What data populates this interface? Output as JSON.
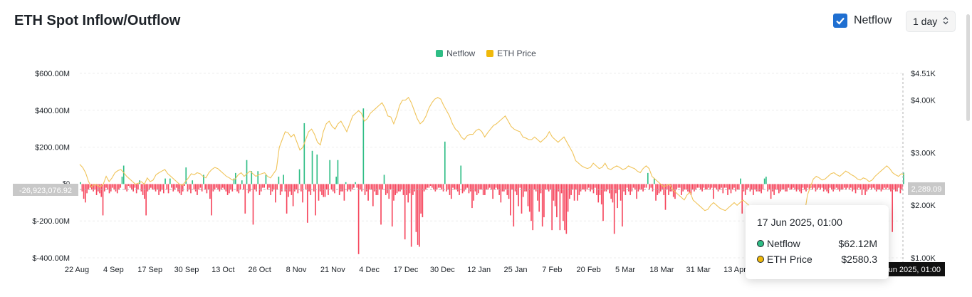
{
  "header": {
    "title": "ETH Spot Inflow/Outflow",
    "toggle_label": "Netflow",
    "range_value": "1 day"
  },
  "legend": [
    {
      "label": "Netflow",
      "color": "#2ebd85"
    },
    {
      "label": "ETH Price",
      "color": "#f0b90b"
    }
  ],
  "colors": {
    "inflow": "#2ebd85",
    "outflow": "#f6465d",
    "price": "#f0c45a",
    "checkbox": "#1f6fd1"
  },
  "icons": {
    "toggle": "check-icon",
    "select": "chevron-updown-icon"
  },
  "tooltip": {
    "date": "17 Jun 2025, 01:00",
    "rows": [
      {
        "label": "Netflow",
        "value": "$62.12M",
        "dot": "#2ebd85"
      },
      {
        "label": "ETH Price",
        "value": "$2580.3",
        "dot": "#f0b90b"
      }
    ]
  },
  "chart_data": {
    "type": "bar",
    "title": "ETH Spot Inflow/Outflow",
    "x_tick_labels": [
      "22 Aug",
      "4 Sep",
      "17 Sep",
      "30 Sep",
      "13 Oct",
      "26 Oct",
      "8 Nov",
      "21 Nov",
      "4 Dec",
      "17 Dec",
      "30 Dec",
      "12 Jan",
      "25 Jan",
      "7 Feb",
      "20 Feb",
      "5 Mar",
      "18 Mar",
      "31 Mar",
      "13 Apr"
    ],
    "y_left_ticks": [
      "$600.00M",
      "$400.00M",
      "$200.00M",
      "$-200.00M",
      "$-400.00M"
    ],
    "y_left_tick_values": [
      600,
      400,
      200,
      -200,
      -400
    ],
    "y_left_zero_label": "$0",
    "y_left_range": [
      -400,
      600
    ],
    "y_right_ticks": [
      "$4.51K",
      "$4.00K",
      "$3.00K",
      "$2.00K",
      "$1.00K"
    ],
    "y_right_tick_values": [
      4.51,
      4.0,
      3.0,
      2.0,
      1.0
    ],
    "y_right_range": [
      1.0,
      4.51
    ],
    "crosshair_left_label": "-26,923,076.92",
    "crosshair_right_label": "2,289.09",
    "crosshair_x_label": "17 Jun 2025, 01:00",
    "grid": true,
    "legend_position": "top-center",
    "series": [
      {
        "name": "Netflow",
        "unit": "$M",
        "values": [
          10,
          -40,
          -80,
          -100,
          -50,
          -30,
          -20,
          -30,
          -40,
          -30,
          -60,
          -40,
          -50,
          -70,
          -170,
          -40,
          -20,
          -30,
          -50,
          -40,
          -20,
          -30,
          -40,
          -50,
          -30,
          -20,
          40,
          100,
          -30,
          -40,
          -10,
          -20,
          -30,
          -40,
          -20,
          -50,
          -30,
          20,
          -40,
          -60,
          -80,
          -170,
          -40,
          -30,
          -20,
          -30,
          -30,
          -40,
          -30,
          -60,
          -40,
          -30,
          -50,
          30,
          -30,
          -50,
          30,
          -20,
          -40,
          -30,
          -20,
          -40,
          -50,
          -60,
          -40,
          -10,
          90,
          -40,
          -30,
          -50,
          20,
          -30,
          -40,
          -60,
          -30,
          -20,
          -40,
          50,
          -30,
          -50,
          -30,
          -80,
          -170,
          -40,
          -30,
          -20,
          -30,
          -40,
          -30,
          -20,
          -30,
          -40,
          -60,
          -50,
          -30,
          -40,
          30,
          60,
          -40,
          -50,
          -30,
          20,
          -30,
          -160,
          130,
          -50,
          -40,
          70,
          -220,
          -30,
          -40,
          70,
          -60,
          -40,
          -20,
          -20,
          50,
          -30,
          -20,
          -60,
          -40,
          -30,
          -100,
          -30,
          40,
          -60,
          -40,
          50,
          -40,
          -160,
          -70,
          -40,
          -60,
          -120,
          -40,
          -30,
          -50,
          80,
          -40,
          -100,
          330,
          -30,
          -210,
          -40,
          -60,
          180,
          -40,
          -170,
          160,
          -90,
          -40,
          -60,
          -70,
          -70,
          -30,
          -60,
          130,
          -30,
          -40,
          -50,
          40,
          130,
          -60,
          -40,
          -40,
          -90,
          10,
          -40,
          -30,
          -40,
          -30,
          -20,
          10,
          -20,
          -380,
          -30,
          -40,
          410,
          -60,
          -40,
          -90,
          -30,
          -30,
          -120,
          -40,
          -60,
          -60,
          -30,
          -220,
          -30,
          50,
          -60,
          -50,
          -80,
          -30,
          -230,
          -90,
          -60,
          -50,
          -40,
          -40,
          -30,
          -60,
          -300,
          -60,
          -100,
          -50,
          -340,
          -60,
          -40,
          -260,
          -330,
          -340,
          -160,
          -180,
          -40,
          -30,
          -20,
          -20,
          -10,
          -20,
          -30,
          -40,
          -30,
          -20,
          -20,
          -30,
          -40,
          230,
          -40,
          -30,
          -60,
          -80,
          -20,
          -30,
          -30,
          -40,
          -60,
          100,
          -50,
          -40,
          -30,
          -20,
          -50,
          -40,
          -130,
          -90,
          -40,
          -60,
          -50,
          -30,
          -30,
          -60,
          -60,
          -30,
          -30,
          -20,
          -30,
          -80,
          -30,
          -20,
          -30,
          -60,
          -100,
          -40,
          -40,
          -30,
          -60,
          -80,
          -170,
          -30,
          -230,
          -40,
          -60,
          -120,
          -20,
          -160,
          -70,
          -40,
          -40,
          -120,
          -150,
          -200,
          -250,
          -30,
          -40,
          -90,
          -150,
          -50,
          -230,
          -180,
          -30,
          -30,
          -40,
          -30,
          -250,
          -90,
          -120,
          -180,
          -40,
          -250,
          -50,
          -200,
          -250,
          -270,
          -150,
          -80,
          -60,
          -30,
          -90,
          -30,
          -90,
          -60,
          -40,
          -30,
          -30,
          -40,
          -30,
          -20,
          -40,
          -30,
          -50,
          -20,
          -60,
          -100,
          -60,
          -110,
          -200,
          -40,
          -40,
          -30,
          -50,
          -80,
          -100,
          -270,
          -50,
          -130,
          -30,
          -90,
          -230,
          -40,
          -60,
          -20,
          -40,
          -60,
          -40,
          -20,
          -30,
          -80,
          -40,
          -30,
          -30,
          -40,
          -20,
          -20,
          60,
          -30,
          -20,
          -40,
          30,
          -90,
          -60,
          -50,
          -40,
          -30,
          -60,
          -140,
          -30,
          -60,
          -40,
          -40,
          -70,
          -80,
          -30,
          -20,
          -20,
          -60,
          -40,
          -30,
          -30,
          -40,
          -50,
          -60,
          -30,
          -40,
          -30,
          -20,
          -20,
          -30,
          -40,
          -20,
          -30,
          -30,
          -20,
          -30,
          -20,
          -80,
          -20,
          -30,
          -40,
          -30,
          -20,
          -50,
          -20,
          -20,
          -60,
          -30,
          -50,
          -30,
          -20,
          -40,
          -30,
          -30,
          30,
          -160,
          -40,
          -60,
          -30,
          -20,
          -40,
          -30,
          -60,
          -30,
          -40,
          -40,
          -40,
          -50,
          -30,
          30,
          40,
          -40,
          -30,
          -80,
          -40,
          -60,
          -30,
          -30,
          -50,
          -40,
          -30,
          -30,
          -40,
          -40,
          -20,
          -30,
          -30,
          -20,
          -30,
          -40,
          -30,
          -40,
          -50,
          -20,
          -30,
          -40,
          -20,
          -30,
          -20,
          -30,
          -20,
          -40,
          -30,
          -20,
          -30,
          -20,
          -40,
          -30,
          -40,
          -50,
          -20,
          -30,
          -40,
          -30,
          -20,
          -30,
          -40,
          -30,
          -30,
          -20,
          -30,
          -20,
          -30,
          -20,
          -40,
          -30,
          -50,
          -30,
          -20,
          -30,
          -60,
          -30,
          -60,
          -40,
          -30,
          -20,
          -30,
          -20,
          -30,
          -40,
          -30,
          -30,
          -40,
          -30,
          -20,
          -30,
          -20,
          -30,
          -40,
          -260,
          -30,
          -40,
          -40,
          -20,
          -50,
          -30,
          62
        ]
      },
      {
        "name": "ETH Price",
        "unit": "$K",
        "values": [
          2.78,
          2.72,
          2.62,
          2.45,
          2.35,
          2.4,
          2.38,
          2.35,
          2.4,
          2.55,
          2.45,
          2.52,
          2.62,
          2.66,
          2.68,
          2.62,
          2.55,
          2.5,
          2.45,
          2.4,
          2.42,
          2.45,
          2.4,
          2.52,
          2.45,
          2.48,
          2.58,
          2.62,
          2.65,
          2.68,
          2.6,
          2.55,
          2.5,
          2.45,
          2.4,
          2.38,
          2.45,
          2.52,
          2.6,
          2.58,
          2.62,
          2.6,
          2.55,
          2.52,
          2.62,
          2.68,
          2.72,
          2.7,
          2.65,
          2.6,
          2.55,
          2.52,
          2.48,
          2.5,
          2.58,
          2.62,
          2.55,
          2.6,
          2.65,
          2.6,
          2.55,
          2.58,
          2.6,
          2.62,
          2.55,
          2.52,
          2.6,
          2.68,
          3.1,
          3.25,
          3.4,
          3.38,
          3.3,
          3.35,
          3.2,
          3.05,
          3.1,
          3.25,
          3.4,
          3.45,
          3.35,
          3.2,
          3.15,
          3.4,
          3.55,
          3.6,
          3.5,
          3.45,
          3.55,
          3.6,
          3.5,
          3.4,
          3.55,
          3.7,
          3.75,
          3.8,
          3.75,
          3.6,
          3.65,
          3.75,
          3.8,
          3.85,
          3.9,
          3.95,
          3.85,
          3.7,
          3.68,
          3.55,
          3.7,
          3.9,
          4.0,
          4.0,
          4.05,
          3.95,
          3.8,
          3.65,
          3.55,
          3.6,
          3.7,
          3.85,
          3.95,
          4.02,
          4.05,
          4.02,
          3.9,
          3.8,
          3.7,
          3.55,
          3.45,
          3.4,
          3.3,
          3.25,
          3.32,
          3.35,
          3.35,
          3.42,
          3.45,
          3.4,
          3.3,
          3.38,
          3.45,
          3.52,
          3.55,
          3.6,
          3.65,
          3.7,
          3.6,
          3.5,
          3.45,
          3.42,
          3.4,
          3.3,
          3.28,
          3.25,
          3.25,
          3.3,
          3.25,
          3.2,
          3.25,
          3.3,
          3.4,
          3.3,
          3.25,
          3.2,
          3.25,
          3.3,
          3.2,
          3.1,
          3.0,
          2.85,
          2.8,
          2.75,
          2.72,
          2.7,
          2.72,
          2.8,
          2.75,
          2.7,
          2.72,
          2.8,
          2.7,
          2.68,
          2.72,
          2.75,
          2.72,
          2.68,
          2.7,
          2.75,
          2.72,
          2.7,
          2.65,
          2.62,
          2.7,
          2.75,
          2.7,
          2.55,
          2.5,
          2.45,
          2.4,
          2.35,
          2.38,
          2.4,
          2.3,
          2.25,
          2.2,
          2.15,
          2.1,
          2.2,
          2.25,
          2.1,
          2.05,
          2.0,
          1.95,
          1.9,
          1.92,
          2.0,
          2.05,
          2.0,
          1.95,
          1.92,
          1.9,
          1.95,
          2.0,
          2.05,
          2.0,
          2.05,
          2.1,
          2.05,
          2.0,
          1.95,
          1.85,
          1.8,
          1.75,
          1.6,
          1.55,
          1.58,
          1.6,
          1.62,
          1.6,
          1.58,
          1.55,
          1.58,
          1.6,
          1.65,
          1.7,
          1.75,
          1.8,
          1.85,
          2.2,
          2.35,
          2.5,
          2.55,
          2.52,
          2.48,
          2.5,
          2.55,
          2.6,
          2.62,
          2.58,
          2.55,
          2.6,
          2.65,
          2.62,
          2.58,
          2.55,
          2.5,
          2.48,
          2.52,
          2.5,
          2.45,
          2.48,
          2.55,
          2.6,
          2.65,
          2.7,
          2.75,
          2.7,
          2.62,
          2.58,
          2.55,
          2.6,
          2.58
        ]
      }
    ]
  }
}
